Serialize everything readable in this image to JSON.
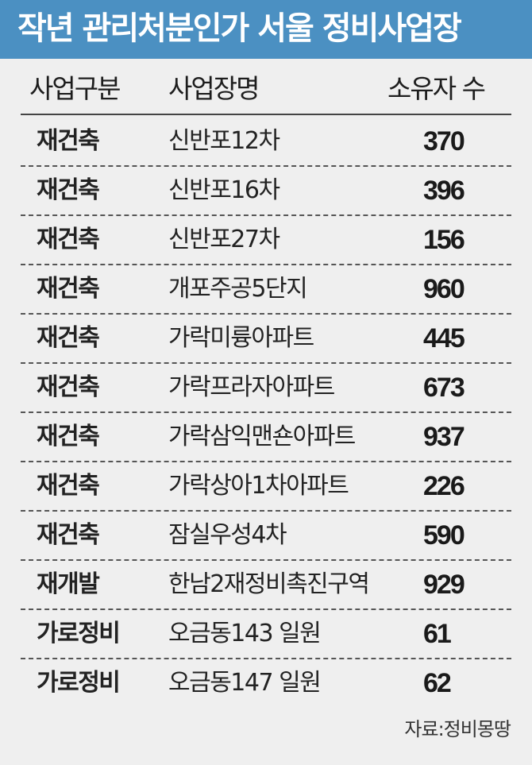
{
  "title": "작년 관리처분인가 서울 정비사업장",
  "colors": {
    "title_bar": "#4b90c2",
    "background": "#efefef"
  },
  "headers": [
    "사업구분",
    "사업장명",
    "소유자 수"
  ],
  "rows": [
    {
      "type": "재건축",
      "name": "신반포12차",
      "owners": "370"
    },
    {
      "type": "재건축",
      "name": "신반포16차",
      "owners": "396"
    },
    {
      "type": "재건축",
      "name": "신반포27차",
      "owners": "156"
    },
    {
      "type": "재건축",
      "name": "개포주공5단지",
      "owners": "960"
    },
    {
      "type": "재건축",
      "name": "가락미륭아파트",
      "owners": "445"
    },
    {
      "type": "재건축",
      "name": "가락프라자아파트",
      "owners": "673"
    },
    {
      "type": "재건축",
      "name": "가락삼익맨숀아파트",
      "owners": "937"
    },
    {
      "type": "재건축",
      "name": "가락상아1차아파트",
      "owners": "226"
    },
    {
      "type": "재건축",
      "name": "잠실우성4차",
      "owners": "590"
    },
    {
      "type": "재개발",
      "name": "한남2재정비촉진구역",
      "owners": "929"
    },
    {
      "type": "가로정비",
      "name": "오금동143 일원",
      "owners": "61"
    },
    {
      "type": "가로정비",
      "name": "오금동147 일원",
      "owners": "62"
    }
  ],
  "source": "자료:정비몽땅"
}
